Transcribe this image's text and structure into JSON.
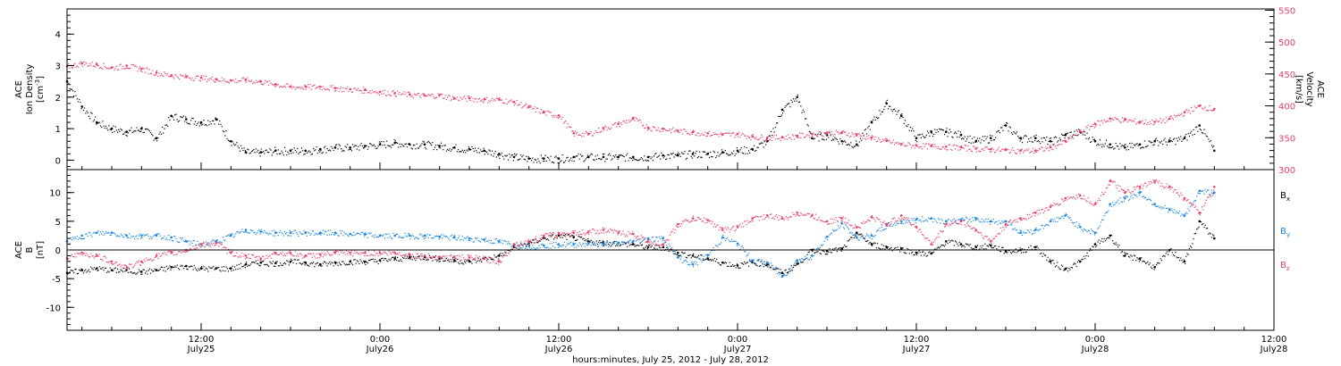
{
  "colors": {
    "black": "#000000",
    "pink": "#e8406a",
    "blue": "#1a86e0"
  },
  "xaxis": {
    "label": "hours:minutes, July 25, 2012 - July 28, 2012",
    "ticks": [
      {
        "time": "12:00",
        "date": "July25",
        "hours": 12
      },
      {
        "time": "0:00",
        "date": "July26",
        "hours": 24
      },
      {
        "time": "12:00",
        "date": "July26",
        "hours": 36
      },
      {
        "time": "0:00",
        "date": "July27",
        "hours": 48
      },
      {
        "time": "12:00",
        "date": "July27",
        "hours": 60
      },
      {
        "time": "0:00",
        "date": "July28",
        "hours": 72
      },
      {
        "time": "12:00",
        "date": "July28",
        "hours": 84
      }
    ]
  },
  "panels": {
    "top": {
      "left_label": [
        "ACE",
        "Ion Density"
      ],
      "left_unit": "[cm",
      "left_unit_sup": "-3",
      "left_unit_close": "]",
      "right_label": [
        "ACE",
        "Velocity"
      ],
      "right_unit": "[km/s]",
      "left_ticks": [
        "0",
        "1",
        "2",
        "3",
        "4"
      ],
      "right_ticks": [
        "300",
        "350",
        "400",
        "450",
        "500",
        "550"
      ]
    },
    "bottom": {
      "left_label": [
        "ACE",
        "B"
      ],
      "left_unit": "[nT]",
      "left_ticks": [
        "-10",
        "-5",
        "0",
        "5",
        "10"
      ],
      "legend": [
        {
          "main": "B",
          "sub": "x",
          "color": "#000000"
        },
        {
          "main": "B",
          "sub": "y",
          "color": "#1a86e0"
        },
        {
          "main": "B",
          "sub": "z",
          "color": "#e8406a"
        }
      ]
    }
  },
  "chart_data": [
    {
      "type": "scatter",
      "title": "",
      "xlabel": "hours:minutes, July 25, 2012 - July 28, 2012",
      "xlim_hours_from_july25_0000": [
        3,
        84
      ],
      "series": [
        {
          "axis": "left",
          "ylabel": "Ion Density [cm-3]",
          "ylim": [
            -0.3,
            4.8
          ],
          "color": "#000000",
          "x_hours": [
            3,
            4,
            5,
            6,
            7,
            8,
            9,
            10,
            11,
            12,
            13,
            14,
            15,
            16,
            17,
            18,
            19,
            20,
            21,
            22,
            23,
            24,
            25,
            26,
            27,
            28,
            29,
            30,
            31,
            32,
            33,
            34,
            35,
            36,
            37,
            38,
            39,
            40,
            41,
            42,
            43,
            44,
            45,
            46,
            47,
            48,
            49,
            50,
            51,
            52,
            53,
            54,
            55,
            56,
            57,
            58,
            59,
            60,
            61,
            62,
            63,
            64,
            65,
            66,
            67,
            68,
            69,
            70,
            71,
            72,
            73,
            74,
            75,
            76,
            77,
            78,
            79,
            80
          ],
          "values": [
            2.5,
            1.7,
            1.2,
            1.0,
            0.9,
            1.0,
            0.7,
            1.4,
            1.3,
            1.2,
            1.3,
            0.6,
            0.25,
            0.25,
            0.3,
            0.3,
            0.3,
            0.35,
            0.4,
            0.4,
            0.45,
            0.5,
            0.55,
            0.5,
            0.5,
            0.45,
            0.4,
            0.35,
            0.3,
            0.2,
            0.1,
            0.05,
            0.05,
            0.05,
            0.1,
            0.1,
            0.1,
            0.1,
            0.1,
            0.1,
            0.15,
            0.15,
            0.2,
            0.2,
            0.25,
            0.3,
            0.35,
            0.6,
            1.6,
            2.0,
            0.7,
            0.8,
            0.6,
            0.5,
            1.2,
            1.8,
            1.4,
            0.7,
            0.9,
            0.9,
            0.8,
            0.6,
            0.7,
            1.1,
            0.7,
            0.7,
            0.6,
            0.8,
            0.9,
            0.6,
            0.5,
            0.4,
            0.5,
            0.6,
            0.6,
            0.7,
            1.1,
            0.3
          ]
        },
        {
          "axis": "right",
          "ylabel": "Velocity [km/s]",
          "ylim": [
            300,
            552
          ],
          "color": "#e8406a",
          "x_hours": [
            3,
            4,
            5,
            6,
            7,
            8,
            9,
            10,
            11,
            12,
            13,
            14,
            15,
            16,
            17,
            18,
            19,
            20,
            21,
            22,
            23,
            24,
            25,
            26,
            27,
            28,
            29,
            30,
            31,
            32,
            33,
            34,
            35,
            36,
            37,
            38,
            39,
            40,
            41,
            42,
            43,
            44,
            45,
            46,
            47,
            48,
            49,
            50,
            51,
            52,
            53,
            54,
            55,
            56,
            57,
            58,
            59,
            60,
            61,
            62,
            63,
            64,
            65,
            66,
            67,
            68,
            69,
            70,
            71,
            72,
            73,
            74,
            75,
            76,
            77,
            78,
            79,
            80
          ],
          "values": [
            462,
            467,
            465,
            460,
            463,
            458,
            452,
            448,
            446,
            444,
            442,
            440,
            441,
            438,
            434,
            430,
            430,
            430,
            428,
            426,
            425,
            422,
            420,
            418,
            416,
            417,
            412,
            412,
            410,
            410,
            406,
            398,
            390,
            385,
            357,
            356,
            365,
            372,
            380,
            366,
            364,
            361,
            359,
            357,
            355,
            356,
            352,
            350,
            351,
            353,
            356,
            358,
            358,
            355,
            350,
            345,
            340,
            338,
            337,
            336,
            335,
            333,
            332,
            331,
            330,
            330,
            335,
            345,
            360,
            372,
            380,
            378,
            375,
            375,
            380,
            390,
            400,
            395
          ]
        }
      ]
    },
    {
      "type": "scatter",
      "title": "",
      "xlabel": "hours:minutes, July 25, 2012 - July 28, 2012",
      "ylabel": "B [nT]",
      "ylim": [
        -14,
        14
      ],
      "series": [
        {
          "name": "Bx",
          "color": "#000000",
          "x_hours": [
            3,
            4,
            5,
            6,
            7,
            8,
            9,
            10,
            11,
            12,
            13,
            14,
            15,
            16,
            17,
            18,
            19,
            20,
            21,
            22,
            23,
            24,
            25,
            26,
            27,
            28,
            29,
            30,
            31,
            32,
            33,
            34,
            35,
            36,
            37,
            38,
            39,
            40,
            41,
            42,
            43,
            44,
            45,
            46,
            47,
            48,
            49,
            50,
            51,
            52,
            53,
            54,
            55,
            56,
            57,
            58,
            59,
            60,
            61,
            62,
            63,
            64,
            65,
            66,
            67,
            68,
            69,
            70,
            71,
            72,
            73,
            74,
            75,
            76,
            77,
            78,
            79,
            80
          ],
          "values": [
            -4,
            -3.5,
            -3.2,
            -3.5,
            -3.5,
            -3.8,
            -3.5,
            -3,
            -2.8,
            -3.2,
            -3.2,
            -3.2,
            -2.5,
            -2.2,
            -2.3,
            -2,
            -2.2,
            -2.5,
            -2.2,
            -2,
            -2,
            -1.8,
            -1.5,
            -1.3,
            -1.2,
            -1.5,
            -1.8,
            -2,
            -1.5,
            -1,
            0.5,
            1.2,
            2.1,
            2.5,
            2.2,
            1.5,
            1.3,
            1.2,
            1,
            0.5,
            0.5,
            -0.5,
            -1,
            -1.5,
            -2.2,
            -2.7,
            -2.1,
            -2.5,
            -4,
            -2.4,
            0,
            -0.2,
            0.2,
            3,
            1,
            0.5,
            0.2,
            -0.5,
            -0.6,
            1.5,
            1,
            0.5,
            0.8,
            -0.2,
            0,
            0.5,
            -2,
            -3.3,
            -2,
            1,
            2.5,
            -1,
            -1.5,
            -3,
            0,
            -2,
            5,
            2
          ]
        },
        {
          "name": "By",
          "color": "#1a86e0",
          "x_hours": [
            3,
            4,
            5,
            6,
            7,
            8,
            9,
            10,
            11,
            12,
            13,
            14,
            15,
            16,
            17,
            18,
            19,
            20,
            21,
            22,
            23,
            24,
            25,
            26,
            27,
            28,
            29,
            30,
            31,
            32,
            33,
            34,
            35,
            36,
            37,
            38,
            39,
            40,
            41,
            42,
            43,
            44,
            45,
            46,
            47,
            48,
            49,
            50,
            51,
            52,
            53,
            54,
            55,
            56,
            57,
            58,
            59,
            60,
            61,
            62,
            63,
            64,
            65,
            66,
            67,
            68,
            69,
            70,
            71,
            72,
            73,
            74,
            75,
            76,
            77,
            78,
            79,
            80
          ],
          "values": [
            1.5,
            2.5,
            3,
            3,
            2.5,
            2.5,
            2.5,
            2.2,
            1.5,
            1,
            1.5,
            2.5,
            3.5,
            3.2,
            3,
            3,
            3,
            3,
            3,
            2.8,
            2.7,
            2.5,
            2.5,
            2.5,
            2.5,
            2.3,
            2.2,
            2,
            1.8,
            1.5,
            1,
            0.7,
            0.8,
            1,
            1,
            1.2,
            1,
            1.2,
            1.5,
            2,
            2,
            -1.3,
            -2.5,
            -0.9,
            2.2,
            1.1,
            -1.8,
            -2.2,
            -4.6,
            -1.8,
            -1,
            2.3,
            4.6,
            2.2,
            2.5,
            4.3,
            5,
            5.3,
            5.5,
            5,
            5.2,
            5.5,
            5,
            5,
            3,
            3.5,
            5,
            6,
            4,
            3,
            8,
            9,
            10,
            8,
            7,
            6,
            10.3,
            10
          ]
        },
        {
          "name": "Bz",
          "color": "#e8406a",
          "x_hours": [
            3,
            4,
            5,
            6,
            7,
            8,
            9,
            10,
            11,
            12,
            13,
            14,
            15,
            16,
            17,
            18,
            19,
            20,
            21,
            22,
            23,
            24,
            25,
            26,
            27,
            28,
            29,
            30,
            31,
            32,
            33,
            34,
            35,
            36,
            37,
            38,
            39,
            40,
            41,
            42,
            43,
            44,
            45,
            46,
            47,
            48,
            49,
            50,
            51,
            52,
            53,
            54,
            55,
            56,
            57,
            58,
            59,
            60,
            61,
            62,
            63,
            64,
            65,
            66,
            67,
            68,
            69,
            70,
            71,
            72,
            73,
            74,
            75,
            76,
            77,
            78,
            79,
            80
          ],
          "values": [
            -1.5,
            -0.5,
            -1,
            -2,
            -3,
            -2,
            -1,
            -0.5,
            0,
            1,
            1.2,
            -0.5,
            -1,
            -1.5,
            -0.5,
            -0.5,
            -1,
            -0.8,
            -0.5,
            -0.5,
            -0.5,
            -0.5,
            -0.5,
            -0.8,
            -1,
            -1.2,
            -1.2,
            -1.3,
            -1.5,
            -2,
            1,
            1.5,
            2.5,
            2.8,
            3,
            3.2,
            3.5,
            3,
            2.8,
            1.5,
            1,
            4.5,
            5.5,
            5.2,
            3.5,
            4,
            5.5,
            6,
            5.5,
            6.5,
            6,
            5,
            5.5,
            4,
            5.7,
            4.5,
            6,
            4,
            1,
            4.5,
            5,
            3.5,
            1.5,
            4.5,
            5.5,
            6.5,
            7.5,
            9,
            9.5,
            8,
            12,
            10,
            11,
            12,
            11,
            9,
            6.5,
            11
          ]
        }
      ]
    }
  ]
}
